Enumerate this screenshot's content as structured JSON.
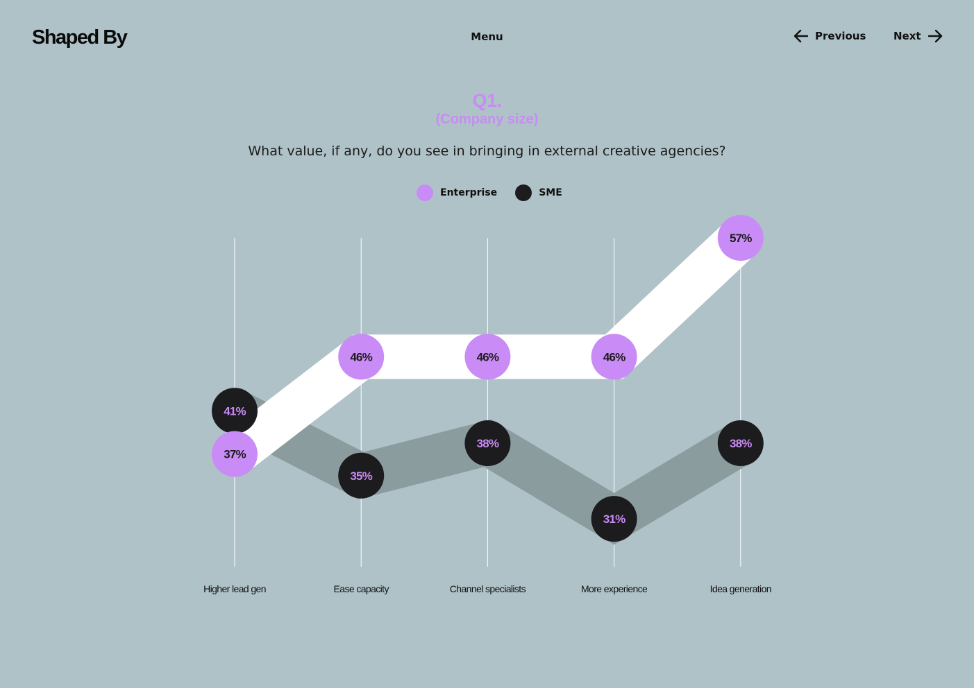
{
  "header": {
    "logo": "Shaped By",
    "menu_label": "Menu",
    "previous_label": "Previous",
    "next_label": "Next"
  },
  "question": {
    "number": "Q1.",
    "segment": "(Company size)",
    "text": "What value, if any, do you see in bringing in external creative agencies?"
  },
  "legend": [
    {
      "label": "Enterprise",
      "color": "#c98bf5"
    },
    {
      "label": "SME",
      "color": "#1c1b1d"
    }
  ],
  "colors": {
    "background": "#afc2c7",
    "enterprise": "#c98bf5",
    "sme": "#1c1b1d",
    "enterprise_band": "#ffffff",
    "sme_band": "#8a9c9e",
    "gridline": "#ffffff"
  },
  "chart_data": {
    "type": "line",
    "categories": [
      "Higher lead gen",
      "Ease capacity",
      "Channel specialists",
      "More experience",
      "Idea generation"
    ],
    "series": [
      {
        "name": "Enterprise",
        "values": [
          37,
          46,
          46,
          46,
          57
        ],
        "labels": [
          "37%",
          "46%",
          "46%",
          "46%",
          "57%"
        ]
      },
      {
        "name": "SME",
        "values": [
          41,
          35,
          38,
          31,
          38
        ],
        "labels": [
          "41%",
          "35%",
          "38%",
          "31%",
          "38%"
        ]
      }
    ],
    "ylim": [
      26,
      57
    ],
    "grid": true,
    "legend_position": "top-center"
  }
}
